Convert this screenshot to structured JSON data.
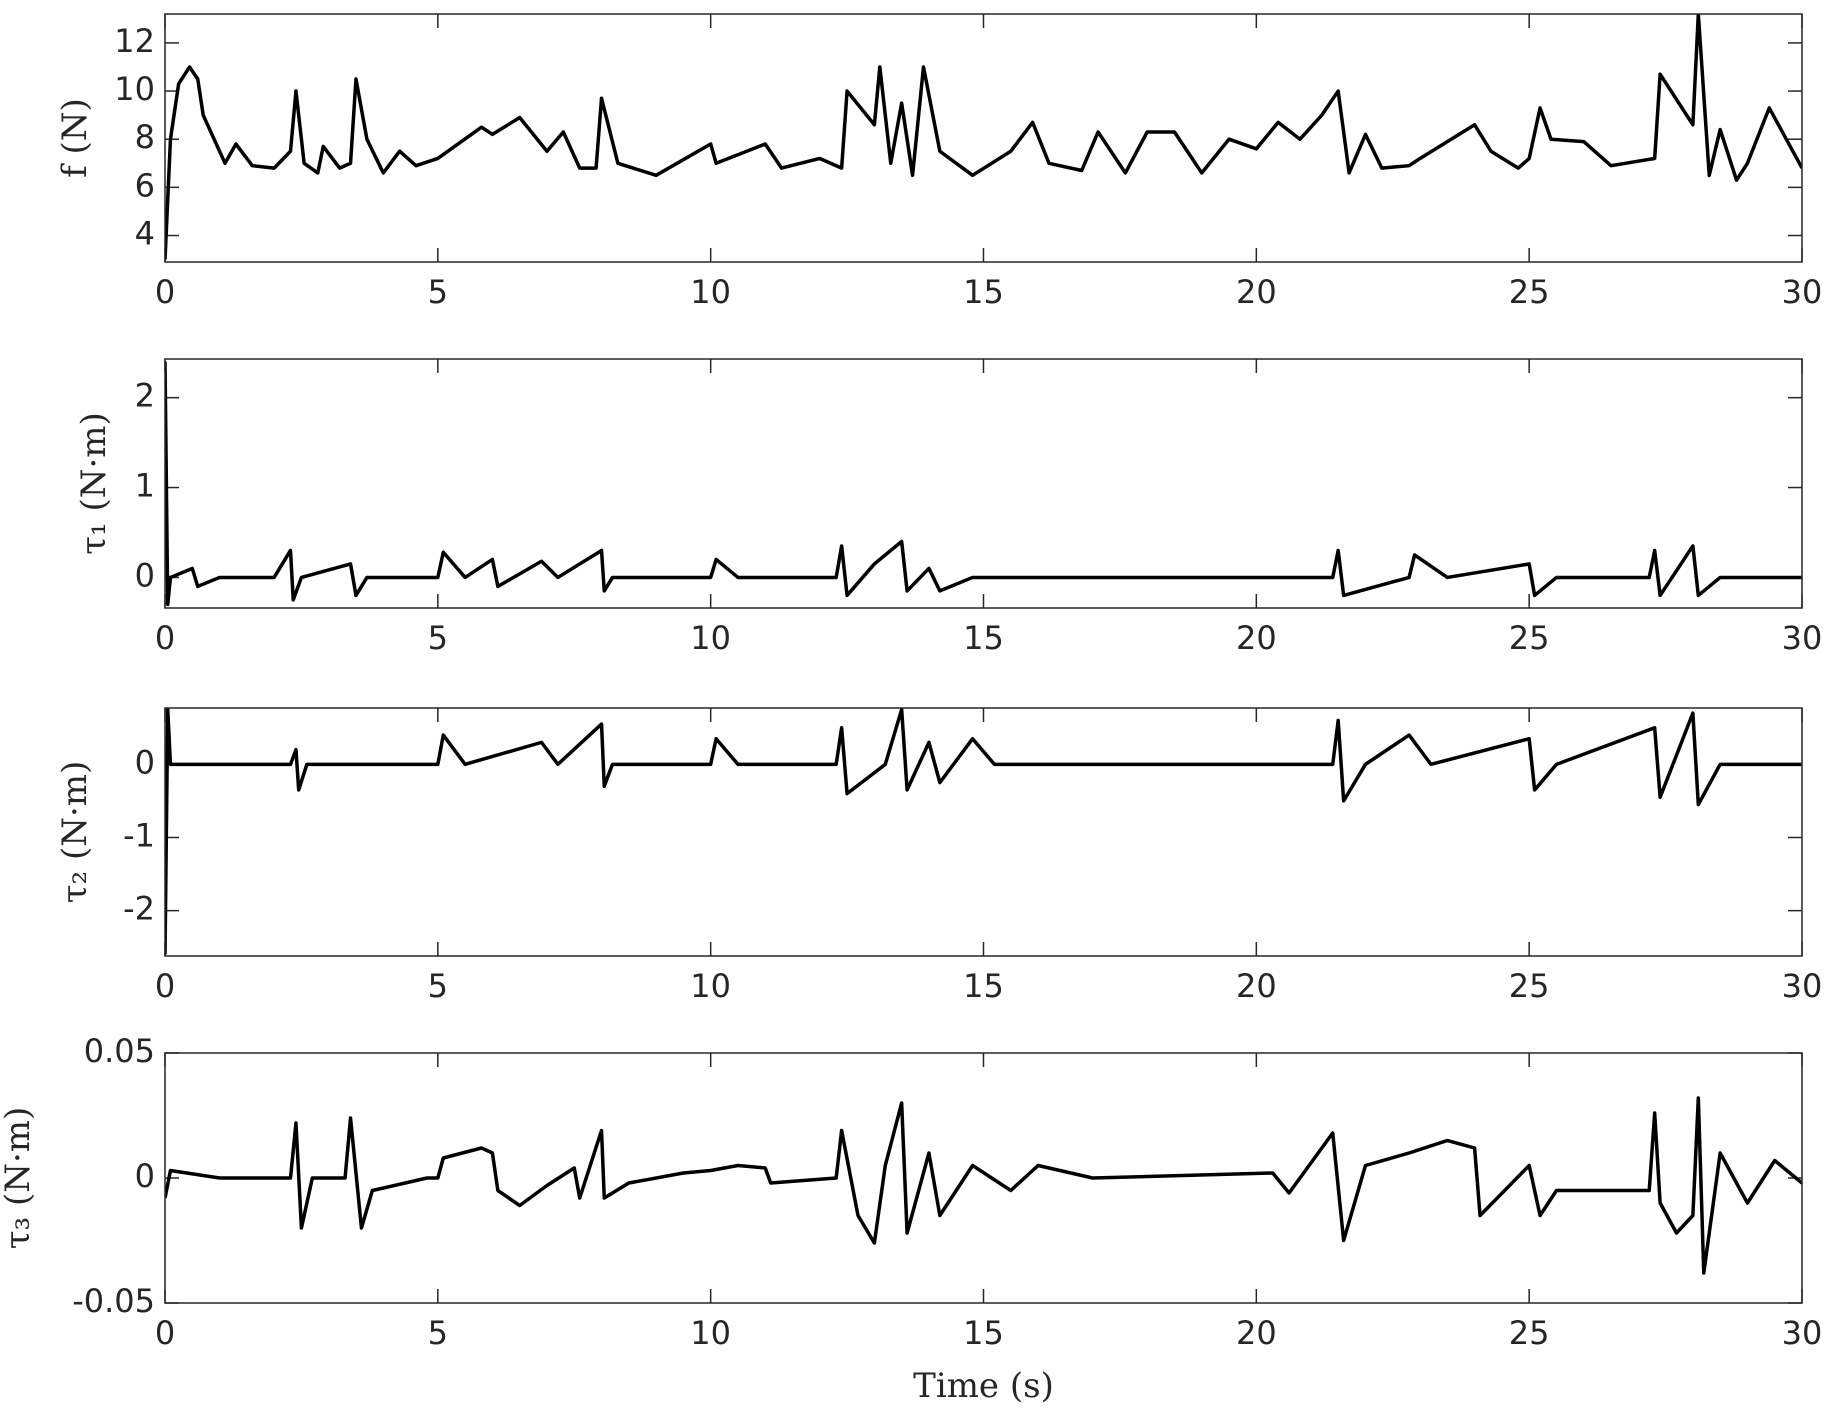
{
  "chart_data": [
    {
      "type": "line",
      "ylabel": "f (N)",
      "color": "#000000",
      "xlim": [
        0,
        30
      ],
      "xticks": [
        0,
        5,
        10,
        15,
        20,
        25,
        30
      ],
      "ylim": [
        2.9,
        13.2
      ],
      "yticks": [
        4,
        6,
        8,
        10,
        12
      ],
      "x": [
        0,
        0.1,
        0.25,
        0.45,
        0.6,
        0.7,
        0.8,
        1.1,
        1.3,
        1.6,
        2.0,
        2.3,
        2.4,
        2.55,
        2.8,
        2.9,
        3.2,
        3.4,
        3.5,
        3.7,
        4.0,
        4.3,
        4.6,
        5.0,
        5.8,
        6.0,
        6.5,
        7.0,
        7.3,
        7.6,
        7.9,
        8.0,
        8.3,
        9.0,
        10.0,
        10.1,
        11.0,
        11.3,
        12.0,
        12.4,
        12.5,
        13.0,
        13.1,
        13.3,
        13.5,
        13.7,
        13.9,
        14.2,
        14.8,
        15.5,
        15.9,
        16.2,
        16.8,
        17.1,
        17.6,
        18.0,
        18.5,
        19.0,
        19.5,
        20.0,
        20.4,
        20.8,
        21.2,
        21.5,
        21.7,
        22.0,
        22.3,
        22.8,
        23.0,
        24.0,
        24.3,
        24.8,
        25.0,
        25.2,
        25.4,
        26.0,
        26.5,
        27.3,
        27.4,
        28.0,
        28.1,
        28.3,
        28.5,
        28.8,
        29.0,
        29.4,
        30.0
      ],
      "values": [
        3,
        8,
        10.3,
        11,
        10.5,
        9,
        8.5,
        7,
        7.8,
        6.9,
        6.8,
        7.5,
        10,
        7,
        6.6,
        7.7,
        6.8,
        7,
        10.5,
        8,
        6.6,
        7.5,
        6.9,
        7.2,
        8.5,
        8.2,
        8.9,
        7.5,
        8.3,
        6.8,
        6.8,
        9.7,
        7.0,
        6.5,
        7.8,
        7.0,
        7.8,
        6.8,
        7.2,
        6.8,
        10,
        8.6,
        11,
        7,
        9.5,
        6.5,
        11,
        7.5,
        6.5,
        7.5,
        8.7,
        7,
        6.7,
        8.3,
        6.6,
        8.3,
        8.3,
        6.6,
        8,
        7.6,
        8.7,
        8,
        9,
        10,
        6.6,
        8.2,
        6.8,
        6.9,
        7.2,
        8.6,
        7.5,
        6.8,
        7.2,
        9.3,
        8,
        7.9,
        6.9,
        7.2,
        10.7,
        8.6,
        13.2,
        6.5,
        8.4,
        6.3,
        7,
        9.3,
        6.8
      ]
    },
    {
      "type": "line",
      "ylabel": "τ₁ (N·m)",
      "color": "#000000",
      "xlim": [
        0,
        30
      ],
      "xticks": [
        0,
        5,
        10,
        15,
        20,
        25,
        30
      ],
      "ylim": [
        -0.34,
        2.43
      ],
      "yticks": [
        0,
        1,
        2
      ],
      "x": [
        0,
        0.05,
        0.1,
        0.5,
        0.6,
        1.0,
        2.0,
        2.3,
        2.35,
        2.5,
        3.4,
        3.5,
        3.7,
        5.0,
        5.1,
        5.5,
        6.0,
        6.1,
        6.9,
        7.2,
        8.0,
        8.05,
        8.2,
        10.0,
        10.1,
        10.5,
        12.3,
        12.4,
        12.5,
        13.0,
        13.5,
        13.6,
        14.0,
        14.2,
        14.8,
        18.0,
        21.4,
        21.5,
        21.6,
        22.8,
        22.9,
        23.5,
        25.0,
        25.1,
        25.5,
        27.2,
        27.3,
        27.4,
        28.0,
        28.1,
        28.5,
        30.0
      ],
      "values": [
        2.4,
        -0.3,
        0,
        0.1,
        -0.1,
        0,
        0,
        0.3,
        -0.25,
        0,
        0.15,
        -0.2,
        0,
        0,
        0.28,
        0,
        0.2,
        -0.1,
        0.18,
        0,
        0.3,
        -0.15,
        0,
        0,
        0.2,
        0,
        0,
        0.35,
        -0.2,
        0.15,
        0.4,
        -0.15,
        0.1,
        -0.15,
        0,
        0,
        0,
        0.3,
        -0.2,
        0,
        0.25,
        0,
        0.15,
        -0.2,
        0,
        0,
        0.3,
        -0.2,
        0.35,
        -0.2,
        0,
        0
      ]
    },
    {
      "type": "line",
      "ylabel": "τ₂ (N·m)",
      "color": "#000000",
      "xlim": [
        0,
        30
      ],
      "xticks": [
        0,
        5,
        10,
        15,
        20,
        25,
        30
      ],
      "ylim": [
        -2.62,
        0.77
      ],
      "yticks": [
        -2,
        -1,
        0
      ],
      "x": [
        0,
        0.05,
        0.1,
        2.3,
        2.4,
        2.45,
        2.6,
        5.0,
        5.1,
        5.5,
        6.9,
        7.2,
        8.0,
        8.05,
        8.2,
        10.0,
        10.1,
        10.5,
        12.3,
        12.4,
        12.5,
        13.2,
        13.5,
        13.6,
        14.0,
        14.2,
        14.8,
        15.2,
        21.4,
        21.5,
        21.6,
        22.0,
        22.8,
        23.2,
        25.0,
        25.1,
        25.5,
        27.3,
        27.4,
        28.0,
        28.1,
        28.5,
        30.0
      ],
      "values": [
        -2.6,
        0.75,
        0,
        0,
        0.2,
        -0.35,
        0,
        0,
        0.4,
        0,
        0.3,
        0,
        0.55,
        -0.3,
        0,
        0,
        0.35,
        0,
        0,
        0.5,
        -0.4,
        0,
        0.75,
        -0.35,
        0.3,
        -0.25,
        0.35,
        0,
        0,
        0.6,
        -0.5,
        0,
        0.4,
        0,
        0.35,
        -0.35,
        0,
        0.5,
        -0.45,
        0.7,
        -0.55,
        0,
        0
      ]
    },
    {
      "type": "line",
      "ylabel": "τ₃ (N·m)",
      "xlabel": "Time (s)",
      "color": "#000000",
      "xlim": [
        0,
        30
      ],
      "xticks": [
        0,
        5,
        10,
        15,
        20,
        25,
        30
      ],
      "ylim": [
        -0.05,
        0.05
      ],
      "yticks": [
        -0.05,
        0,
        0.05
      ],
      "x": [
        0,
        0.1,
        1.0,
        2.3,
        2.4,
        2.5,
        2.7,
        3.3,
        3.4,
        3.6,
        3.8,
        4.8,
        5.0,
        5.1,
        5.8,
        6.0,
        6.1,
        6.5,
        7.0,
        7.5,
        7.6,
        8.0,
        8.05,
        8.5,
        9.5,
        10.0,
        10.5,
        11.0,
        11.1,
        12.3,
        12.4,
        12.7,
        13.0,
        13.2,
        13.5,
        13.6,
        14.0,
        14.2,
        14.8,
        15.5,
        16.0,
        17.0,
        20.3,
        20.6,
        21.4,
        21.6,
        22.0,
        22.8,
        23.5,
        24.0,
        24.1,
        25.0,
        25.2,
        25.5,
        26.0,
        27.2,
        27.3,
        27.4,
        27.7,
        28.0,
        28.1,
        28.2,
        28.5,
        29.0,
        29.5,
        30.0
      ],
      "values": [
        -0.008,
        0.003,
        0,
        0,
        0.022,
        -0.02,
        0,
        0,
        0.024,
        -0.02,
        -0.005,
        0,
        0,
        0.008,
        0.012,
        0.01,
        -0.005,
        -0.011,
        -0.003,
        0.004,
        -0.008,
        0.019,
        -0.008,
        -0.002,
        0.002,
        0.003,
        0.005,
        0.004,
        -0.002,
        0,
        0.019,
        -0.015,
        -0.026,
        0.005,
        0.03,
        -0.022,
        0.01,
        -0.015,
        0.005,
        -0.005,
        0.005,
        0,
        0.002,
        -0.006,
        0.018,
        -0.025,
        0.005,
        0.01,
        0.015,
        0.012,
        -0.015,
        0.005,
        -0.015,
        -0.005,
        -0.005,
        -0.005,
        0.026,
        -0.01,
        -0.022,
        -0.015,
        0.032,
        -0.038,
        0.01,
        -0.01,
        0.007,
        -0.002
      ]
    }
  ]
}
